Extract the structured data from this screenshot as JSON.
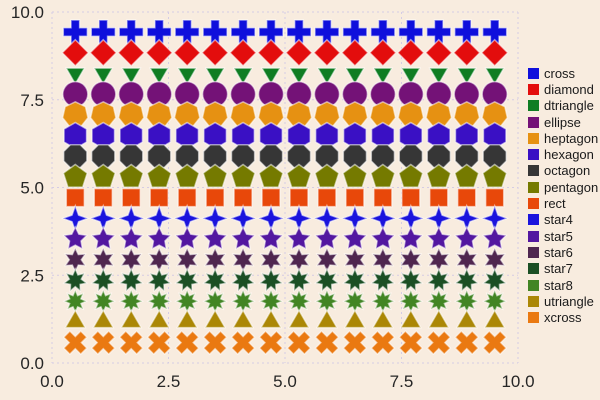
{
  "chart_data": {
    "type": "scatter",
    "title": "",
    "xlabel": "",
    "ylabel": "",
    "xlim": [
      0,
      10
    ],
    "ylim": [
      0,
      10
    ],
    "grid": true,
    "grid_style": "dotted",
    "legend_position": "right",
    "x_tick_values": [
      0,
      2.5,
      5,
      7.5,
      10
    ],
    "x_tick_labels": [
      "0.0",
      "2.5",
      "5.0",
      "7.5",
      "10.0"
    ],
    "y_tick_values": [
      0,
      2.5,
      5,
      7.5,
      10
    ],
    "y_tick_labels": [
      "0.0",
      "2.5",
      "5.0",
      "7.5",
      "10.0"
    ],
    "x": [
      0.5,
      1.1,
      1.7,
      2.3,
      2.9,
      3.5,
      4.1,
      4.7,
      5.3,
      5.9,
      6.5,
      7.1,
      7.7,
      8.3,
      8.9,
      9.5
    ],
    "series": [
      {
        "name": "cross",
        "shape": "cross",
        "color": "#0f0fdc",
        "y": 9.43
      },
      {
        "name": "diamond",
        "shape": "diamond",
        "color": "#e30d0d",
        "y": 8.84
      },
      {
        "name": "dtriangle",
        "shape": "dtriangle",
        "color": "#0f7d23",
        "y": 8.25
      },
      {
        "name": "ellipse",
        "shape": "ellipse",
        "color": "#741277",
        "y": 7.66
      },
      {
        "name": "heptagon",
        "shape": "heptagon",
        "color": "#e69112",
        "y": 7.07
      },
      {
        "name": "hexagon",
        "shape": "hexagon",
        "color": "#3a10c4",
        "y": 6.48
      },
      {
        "name": "octagon",
        "shape": "octagon",
        "color": "#363636",
        "y": 5.89
      },
      {
        "name": "pentagon",
        "shape": "pentagon",
        "color": "#757a00",
        "y": 5.3
      },
      {
        "name": "rect",
        "shape": "rect",
        "color": "#e8480a",
        "y": 4.71
      },
      {
        "name": "star4",
        "shape": "star4",
        "color": "#1b14dd",
        "y": 4.12
      },
      {
        "name": "star5",
        "shape": "star5",
        "color": "#5317a0",
        "y": 3.53
      },
      {
        "name": "star6",
        "shape": "star6",
        "color": "#4f264f",
        "y": 2.94
      },
      {
        "name": "star7",
        "shape": "star7",
        "color": "#1b4f24",
        "y": 2.35
      },
      {
        "name": "star8",
        "shape": "star8",
        "color": "#428524",
        "y": 1.76
      },
      {
        "name": "utriangle",
        "shape": "utriangle",
        "color": "#ab8706",
        "y": 1.17
      },
      {
        "name": "xcross",
        "shape": "xcross",
        "color": "#ea7911",
        "y": 0.58
      }
    ]
  },
  "colors": {
    "background": "#f8ecdf",
    "grid": "#d5cce4",
    "tick_text": "#262626",
    "legend_text": "#1a1a1a",
    "marker_stroke": "rgba(255,255,255,0.55)"
  }
}
